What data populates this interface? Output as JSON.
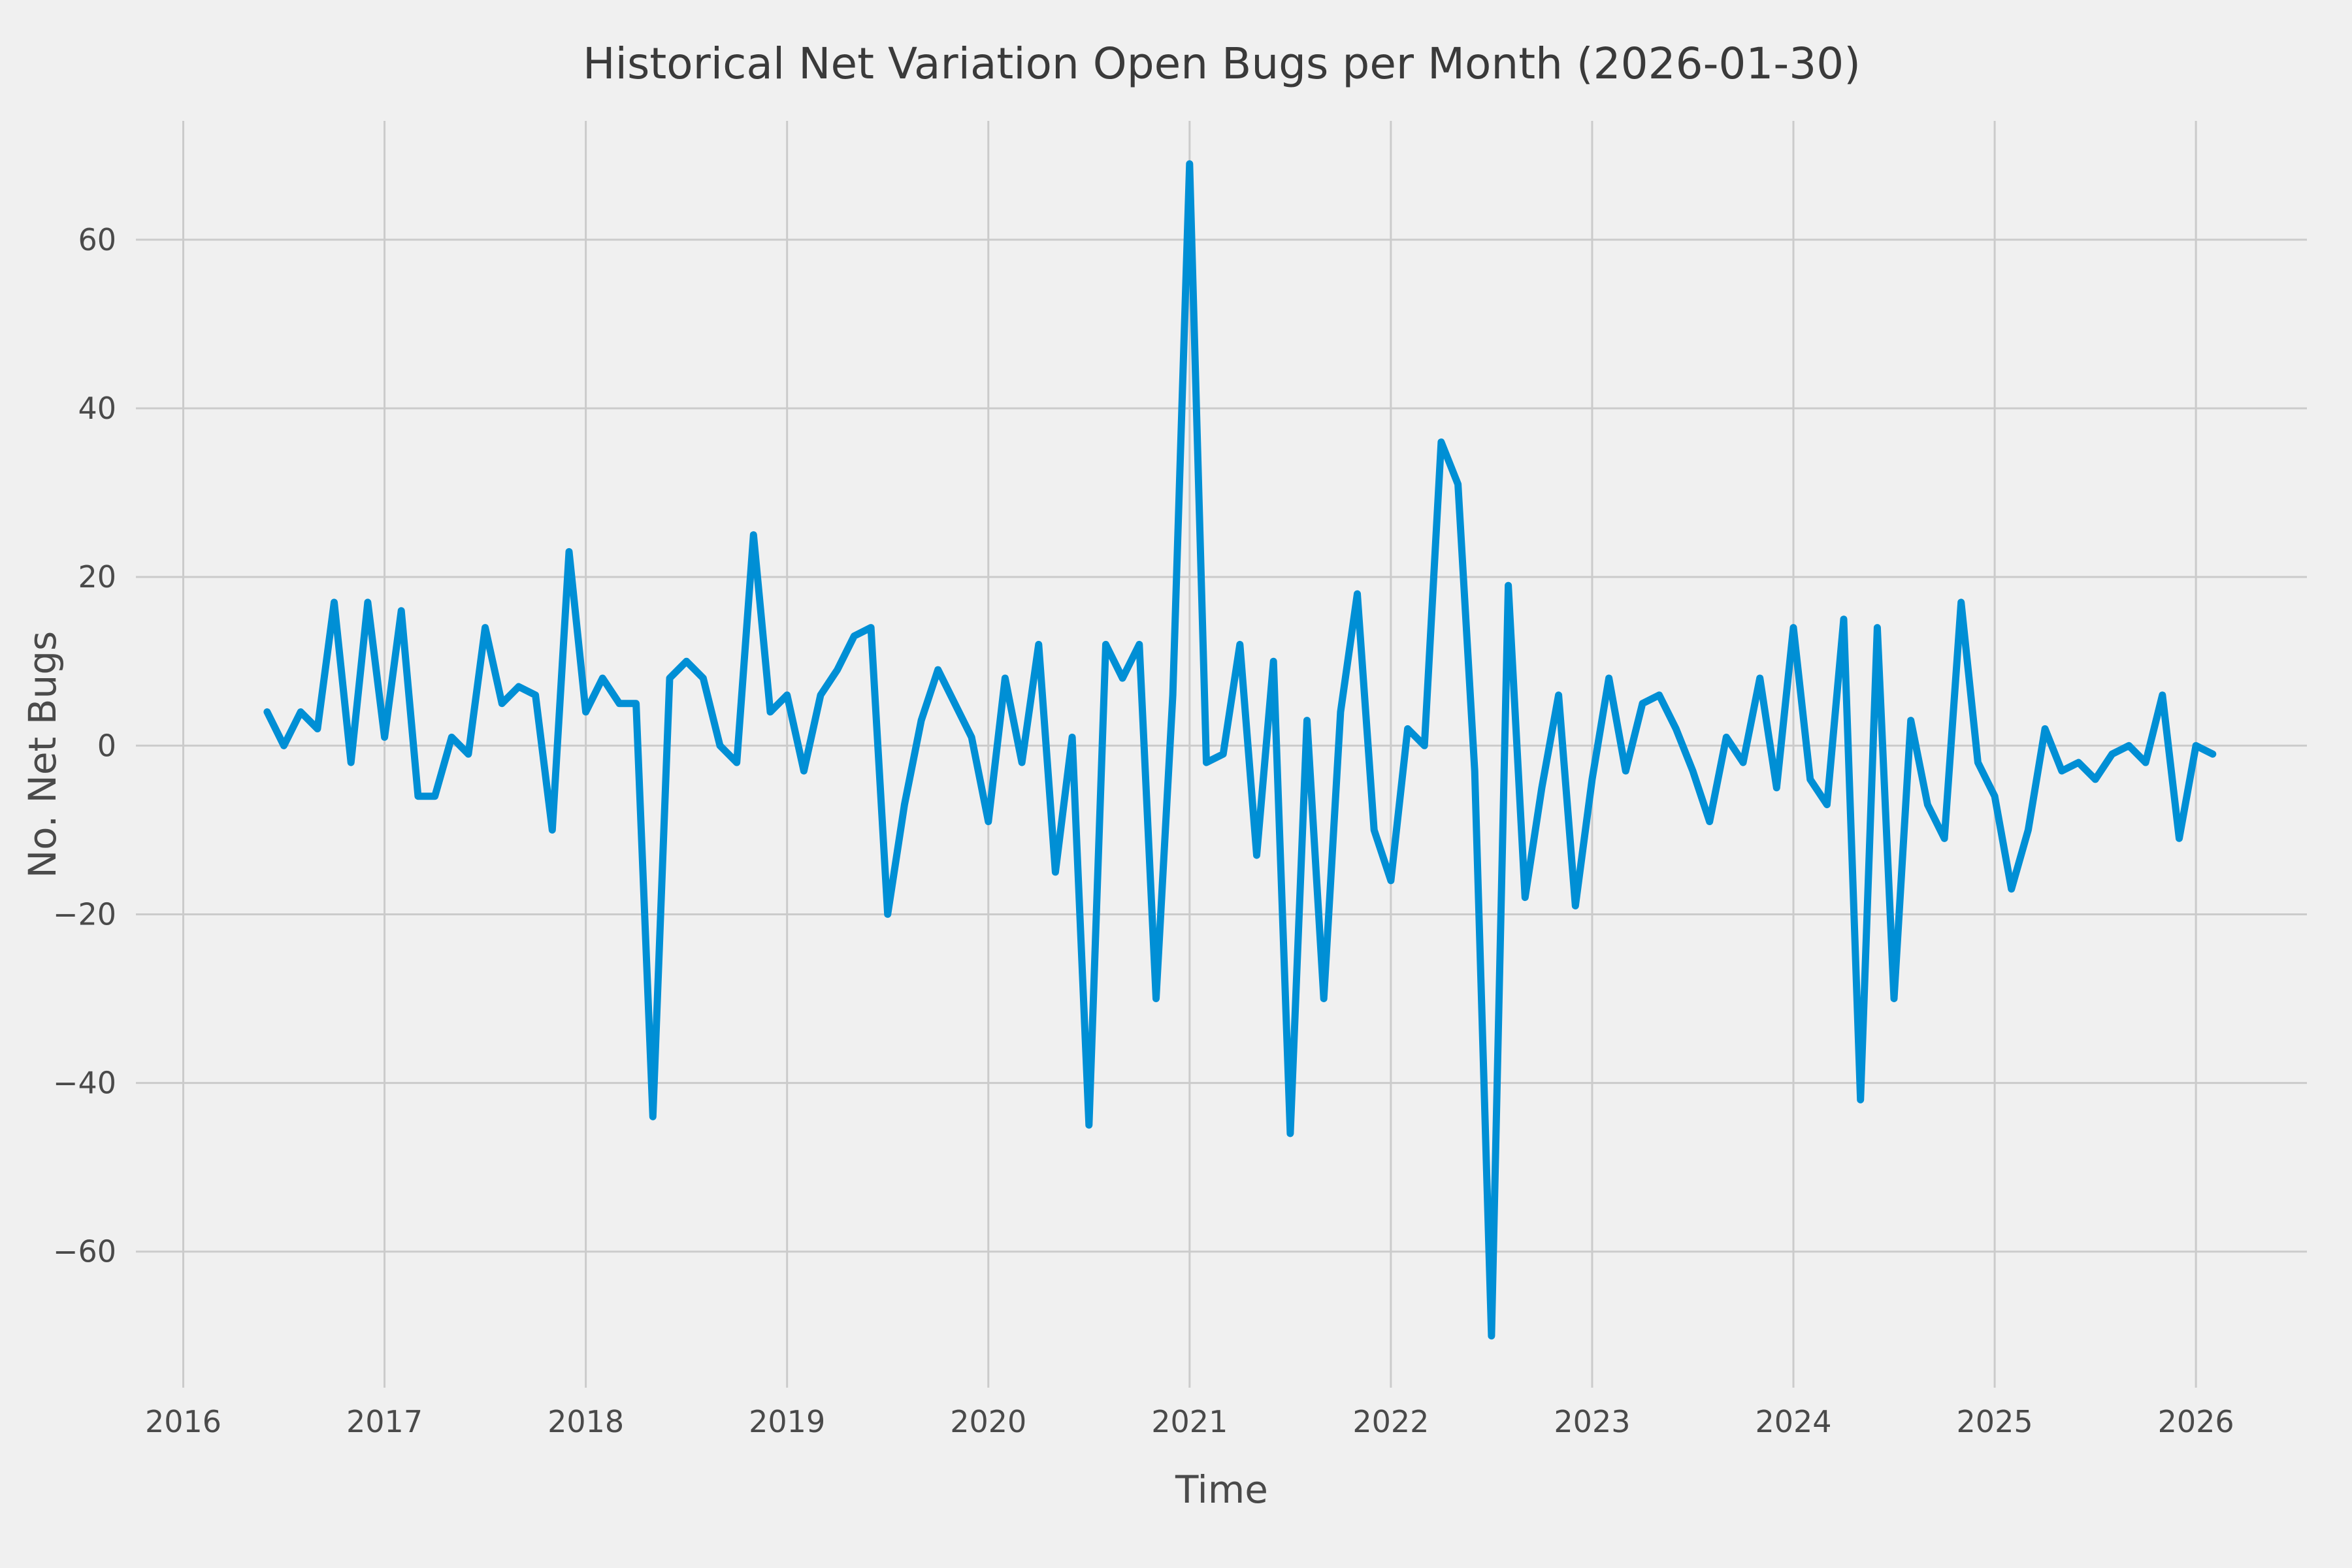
{
  "chart_data": {
    "type": "line",
    "title": "Historical Net Variation Open Bugs per Month (2026-01-30)",
    "xlabel": "Time",
    "ylabel": "No. Net Bugs",
    "legend": null,
    "grid": true,
    "x_tick_labels": [
      "2016",
      "2017",
      "2018",
      "2019",
      "2020",
      "2021",
      "2022",
      "2023",
      "2024",
      "2025",
      "2026"
    ],
    "y_tick_labels": [
      "−60",
      "−40",
      "−20",
      "0",
      "20",
      "40",
      "60"
    ],
    "y_ticks": [
      -60,
      -40,
      -20,
      0,
      20,
      40,
      60
    ],
    "ylim": [
      -75,
      74
    ],
    "series_start": "2016-06",
    "frequency": "monthly",
    "values": [
      4,
      0,
      4,
      2,
      17,
      -2,
      17,
      1,
      16,
      -6,
      -6,
      1,
      -1,
      14,
      5,
      7,
      6,
      -10,
      23,
      4,
      8,
      5,
      5,
      -44,
      8,
      10,
      8,
      0,
      -2,
      25,
      4,
      6,
      -3,
      6,
      9,
      13,
      14,
      -20,
      -7,
      3,
      9,
      5,
      1,
      -9,
      8,
      -2,
      12,
      -15,
      1,
      -45,
      12,
      8,
      12,
      -30,
      6,
      69,
      -2,
      -1,
      12,
      -13,
      10,
      -46,
      3,
      -30,
      4,
      18,
      -10,
      -16,
      2,
      0,
      36,
      31,
      -3,
      -70,
      19,
      -18,
      -5,
      6,
      -19,
      -4,
      8,
      -3,
      5,
      6,
      2,
      -3,
      -9,
      1,
      -2,
      8,
      -5,
      14,
      -4,
      -7,
      15,
      -42,
      14,
      -30,
      3,
      -7,
      -11,
      17,
      -2,
      -6,
      -17,
      -10,
      2,
      -3,
      -2,
      -4,
      -1,
      0,
      -2,
      6,
      -11,
      0,
      -1
    ],
    "colors": {
      "line": "#008fd5",
      "background": "#f0f0f0",
      "grid": "#cbcbcb",
      "title_text": "#3a3a3a",
      "tick_text": "#4a4a4a"
    },
    "style": "fivethirtyeight-like, no spines, thick round-joined line"
  }
}
